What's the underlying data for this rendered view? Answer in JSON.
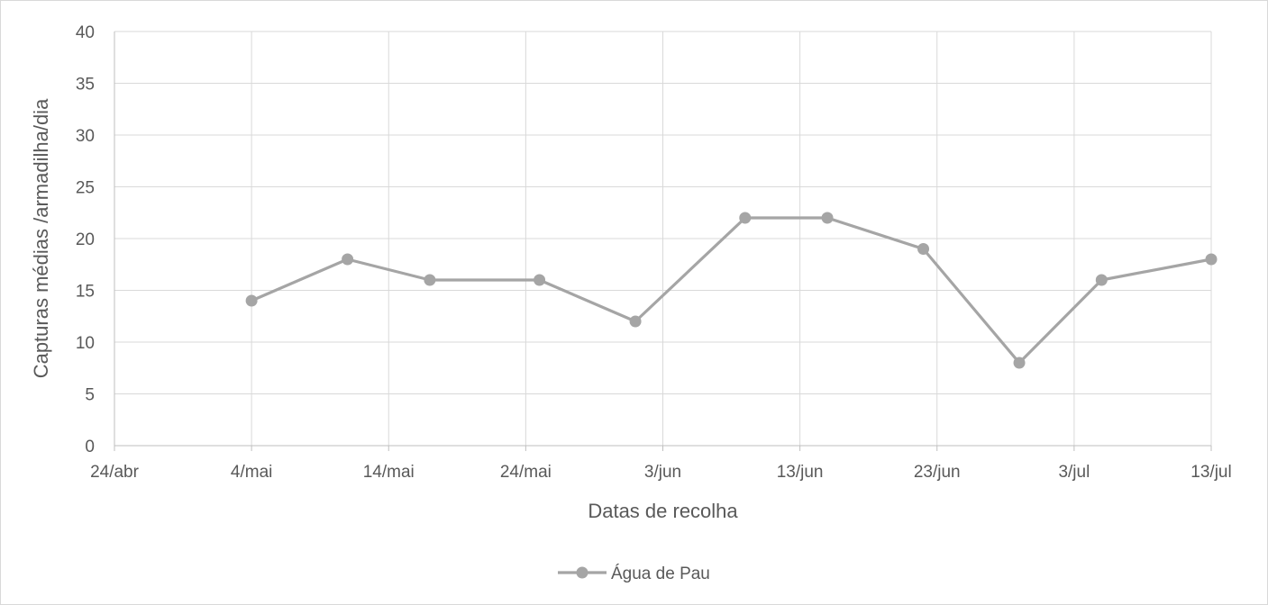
{
  "chart_data": {
    "type": "line",
    "title": "",
    "xlabel": "Datas de recolha",
    "ylabel": "Capturas médias /armadilha/dia",
    "x_type": "date",
    "x_tick_labels": [
      "24/abr",
      "4/mai",
      "14/mai",
      "24/mai",
      "3/jun",
      "13/jun",
      "23/jun",
      "3/jul",
      "13/jul"
    ],
    "x_tick_dates": [
      "2019-04-24",
      "2019-05-04",
      "2019-05-14",
      "2019-05-24",
      "2019-06-03",
      "2019-06-13",
      "2019-06-23",
      "2019-07-03",
      "2019-07-13"
    ],
    "xlim": [
      "2019-04-24",
      "2019-07-13"
    ],
    "ylim": [
      0,
      40
    ],
    "y_ticks": [
      0,
      5,
      10,
      15,
      20,
      25,
      30,
      35,
      40
    ],
    "grid": true,
    "legend_position": "bottom",
    "series": [
      {
        "name": "Água de Pau",
        "color": "#a5a5a5",
        "x": [
          "2019-05-04",
          "2019-05-11",
          "2019-05-17",
          "2019-05-25",
          "2019-06-01",
          "2019-06-09",
          "2019-06-15",
          "2019-06-22",
          "2019-06-29",
          "2019-07-05",
          "2019-07-13"
        ],
        "y": [
          14,
          18,
          16,
          16,
          12,
          22,
          22,
          19,
          8,
          16,
          18
        ]
      }
    ]
  }
}
